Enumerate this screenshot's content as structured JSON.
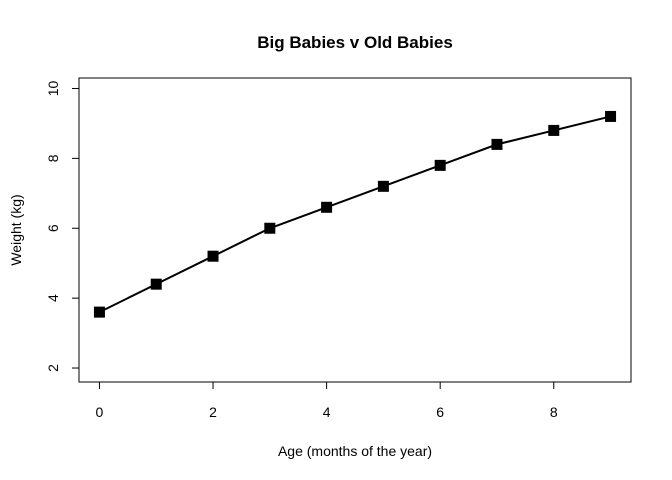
{
  "chart_data": {
    "type": "line",
    "title": "Big Babies v Old Babies",
    "xlabel": "Age (months of the year)",
    "ylabel": "Weight (kg)",
    "x": [
      0,
      1,
      2,
      3,
      4,
      5,
      6,
      7,
      8,
      9
    ],
    "series": [
      {
        "values": [
          3.6,
          4.4,
          5.2,
          6.0,
          6.6,
          7.2,
          7.8,
          8.4,
          8.8,
          9.2
        ]
      }
    ],
    "xlim": [
      -0.36,
      9.36
    ],
    "ylim": [
      1.6,
      10.3
    ],
    "x_ticks": [
      0,
      2,
      4,
      6,
      8
    ],
    "y_ticks": [
      2,
      4,
      6,
      8,
      10
    ],
    "marker": "filled-square",
    "line_color": "#000000",
    "grid": false,
    "legend": "none"
  }
}
